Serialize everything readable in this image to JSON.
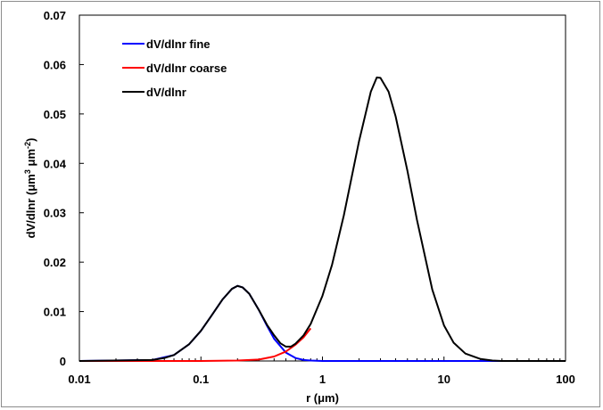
{
  "chart_data": {
    "type": "line",
    "xlabel": "r  (μm)",
    "ylabel_main": "dV/dlnr (μm",
    "ylabel_sup1": "3",
    "ylabel_mid": " μm",
    "ylabel_sup2": "-2",
    "ylabel_end": ")",
    "x_scale": "log",
    "xlim": [
      0.01,
      100
    ],
    "ylim": [
      0,
      0.07
    ],
    "x_ticks": [
      0.01,
      0.1,
      1,
      10,
      100
    ],
    "x_tick_labels": [
      "0.01",
      "0.1",
      "1",
      "10",
      "100"
    ],
    "y_ticks": [
      0,
      0.01,
      0.02,
      0.03,
      0.04,
      0.05,
      0.06,
      0.07
    ],
    "y_tick_labels": [
      "0",
      "0.01",
      "0.02",
      "0.03",
      "0.04",
      "0.05",
      "0.06",
      "0.07"
    ],
    "grid": false,
    "legend_position": "top-left",
    "series": [
      {
        "name": "dV/dlnr fine",
        "color": "#0000ff",
        "x": [
          0.01,
          0.04,
          0.06,
          0.08,
          0.1,
          0.12,
          0.15,
          0.18,
          0.2,
          0.22,
          0.25,
          0.3,
          0.35,
          0.4,
          0.5,
          0.6,
          0.7,
          0.8,
          1.0,
          100
        ],
        "y": [
          0,
          0.0002,
          0.0012,
          0.0034,
          0.0061,
          0.0089,
          0.0124,
          0.0146,
          0.0152,
          0.0149,
          0.0136,
          0.0103,
          0.0071,
          0.0045,
          0.0017,
          0.0006,
          0.0002,
          0.0001,
          0,
          0
        ]
      },
      {
        "name": "dV/dlnr coarse",
        "color": "#ff0000",
        "x": [
          0.01,
          0.1,
          0.2,
          0.3,
          0.4,
          0.5,
          0.6,
          0.7,
          0.8
        ],
        "y": [
          0,
          0,
          0.0001,
          0.0003,
          0.0009,
          0.0019,
          0.0033,
          0.0048,
          0.0066
        ]
      },
      {
        "name": "dV/dlnr",
        "color": "#000000",
        "x": [
          0.01,
          0.04,
          0.05,
          0.06,
          0.08,
          0.1,
          0.12,
          0.15,
          0.18,
          0.2,
          0.22,
          0.25,
          0.3,
          0.35,
          0.4,
          0.45,
          0.5,
          0.55,
          0.6,
          0.7,
          0.8,
          1.0,
          1.2,
          1.5,
          2.0,
          2.5,
          2.8,
          3.0,
          3.5,
          4.0,
          5.0,
          6.0,
          8.0,
          10,
          12,
          15,
          20,
          25,
          30,
          100
        ],
        "y": [
          0,
          0.0002,
          0.0006,
          0.0012,
          0.0034,
          0.0061,
          0.0089,
          0.0124,
          0.0146,
          0.0152,
          0.0149,
          0.0136,
          0.0103,
          0.0073,
          0.0052,
          0.0036,
          0.0029,
          0.0029,
          0.0035,
          0.0052,
          0.0075,
          0.0132,
          0.0195,
          0.0295,
          0.0445,
          0.0545,
          0.0574,
          0.0573,
          0.0545,
          0.0495,
          0.0385,
          0.0285,
          0.0145,
          0.0072,
          0.0037,
          0.0015,
          0.0004,
          0.0001,
          0,
          0
        ]
      }
    ]
  }
}
